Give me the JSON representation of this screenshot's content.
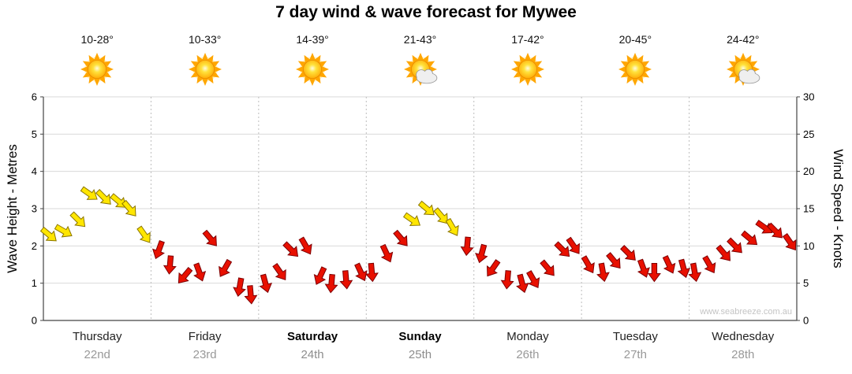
{
  "title": "7 day wind & wave forecast for Mywee",
  "watermark": "www.seabreeze.com.au",
  "days": [
    {
      "name": "Thursday",
      "date": "22nd",
      "temp": "10-28°",
      "icon": "sunny",
      "bold": false
    },
    {
      "name": "Friday",
      "date": "23rd",
      "temp": "10-33°",
      "icon": "sunny",
      "bold": false
    },
    {
      "name": "Saturday",
      "date": "24th",
      "temp": "14-39°",
      "icon": "sunny",
      "bold": true
    },
    {
      "name": "Sunday",
      "date": "25th",
      "temp": "21-43°",
      "icon": "partly-cloudy",
      "bold": true
    },
    {
      "name": "Monday",
      "date": "26th",
      "temp": "17-42°",
      "icon": "sunny",
      "bold": false
    },
    {
      "name": "Tuesday",
      "date": "27th",
      "temp": "20-45°",
      "icon": "sunny",
      "bold": false
    },
    {
      "name": "Wednesday",
      "date": "28th",
      "temp": "24-42°",
      "icon": "partly-cloudy",
      "bold": false
    }
  ],
  "chart_data": {
    "type": "scatter",
    "title": "7 day wind & wave forecast for Mywee",
    "left_axis": {
      "label": "Wave Height - Metres",
      "min": 0,
      "max": 6,
      "ticks": [
        0,
        1,
        2,
        3,
        4,
        5,
        6
      ]
    },
    "right_axis": {
      "label": "Wind Speed - Knots",
      "min": 0,
      "max": 30,
      "ticks": [
        0,
        5,
        10,
        15,
        20,
        25,
        30
      ]
    },
    "x_categories": [
      "Thursday 22nd",
      "Friday 23rd",
      "Saturday 24th",
      "Sunday 25th",
      "Monday 26th",
      "Tuesday 27th",
      "Wednesday 28th"
    ],
    "grid": true,
    "marker": "wind-direction-arrow",
    "units": "knots",
    "arrow_colors": {
      "y": "#ffe600",
      "r": "#e81000"
    },
    "points_per_day": 8,
    "wind": [
      {
        "day": "Thursday",
        "points": [
          [
            11.5,
            40,
            "y"
          ],
          [
            12,
            30,
            "y"
          ],
          [
            13.5,
            45,
            "y"
          ],
          [
            17,
            35,
            "y"
          ],
          [
            16.5,
            45,
            "y"
          ],
          [
            16,
            40,
            "y"
          ],
          [
            15,
            50,
            "y"
          ],
          [
            11.5,
            55,
            "y"
          ]
        ]
      },
      {
        "day": "Friday",
        "points": [
          [
            9.5,
            110,
            "r"
          ],
          [
            7.5,
            95,
            "r"
          ],
          [
            6,
            130,
            "r"
          ],
          [
            6.5,
            70,
            "r"
          ],
          [
            11,
            50,
            "r"
          ],
          [
            7,
            120,
            "r"
          ],
          [
            4.5,
            100,
            "r"
          ],
          [
            3.5,
            85,
            "r"
          ]
        ]
      },
      {
        "day": "Saturday",
        "points": [
          [
            5,
            75,
            "r"
          ],
          [
            6.5,
            55,
            "r"
          ],
          [
            9.5,
            45,
            "r"
          ],
          [
            10,
            60,
            "r"
          ],
          [
            6,
            115,
            "r"
          ],
          [
            5,
            95,
            "r"
          ],
          [
            5.5,
            85,
            "r"
          ],
          [
            6.5,
            65,
            "r"
          ]
        ]
      },
      {
        "day": "Sunday",
        "points": [
          [
            6.5,
            85,
            "r"
          ],
          [
            9,
            65,
            "r"
          ],
          [
            11,
            50,
            "r"
          ],
          [
            13.5,
            35,
            "y"
          ],
          [
            15,
            40,
            "y"
          ],
          [
            14,
            50,
            "y"
          ],
          [
            12.5,
            60,
            "y"
          ],
          [
            10,
            95,
            "r"
          ]
        ]
      },
      {
        "day": "Monday",
        "points": [
          [
            9,
            105,
            "r"
          ],
          [
            7,
            125,
            "r"
          ],
          [
            5.5,
            95,
            "r"
          ],
          [
            5,
            75,
            "r"
          ],
          [
            5.5,
            60,
            "r"
          ],
          [
            7,
            50,
            "r"
          ],
          [
            9.5,
            45,
            "r"
          ],
          [
            10,
            55,
            "r"
          ]
        ]
      },
      {
        "day": "Tuesday",
        "points": [
          [
            7.5,
            60,
            "r"
          ],
          [
            6.5,
            80,
            "r"
          ],
          [
            8,
            50,
            "r"
          ],
          [
            9,
            45,
            "r"
          ],
          [
            7,
            70,
            "r"
          ],
          [
            6.5,
            90,
            "r"
          ],
          [
            7.5,
            65,
            "r"
          ],
          [
            7,
            75,
            "r"
          ]
        ]
      },
      {
        "day": "Wednesday",
        "points": [
          [
            6.5,
            80,
            "r"
          ],
          [
            7.5,
            60,
            "r"
          ],
          [
            9,
            50,
            "r"
          ],
          [
            10,
            45,
            "r"
          ],
          [
            11,
            40,
            "r"
          ],
          [
            12.5,
            35,
            "r"
          ],
          [
            12,
            45,
            "r"
          ],
          [
            10.5,
            55,
            "r"
          ]
        ]
      }
    ]
  }
}
